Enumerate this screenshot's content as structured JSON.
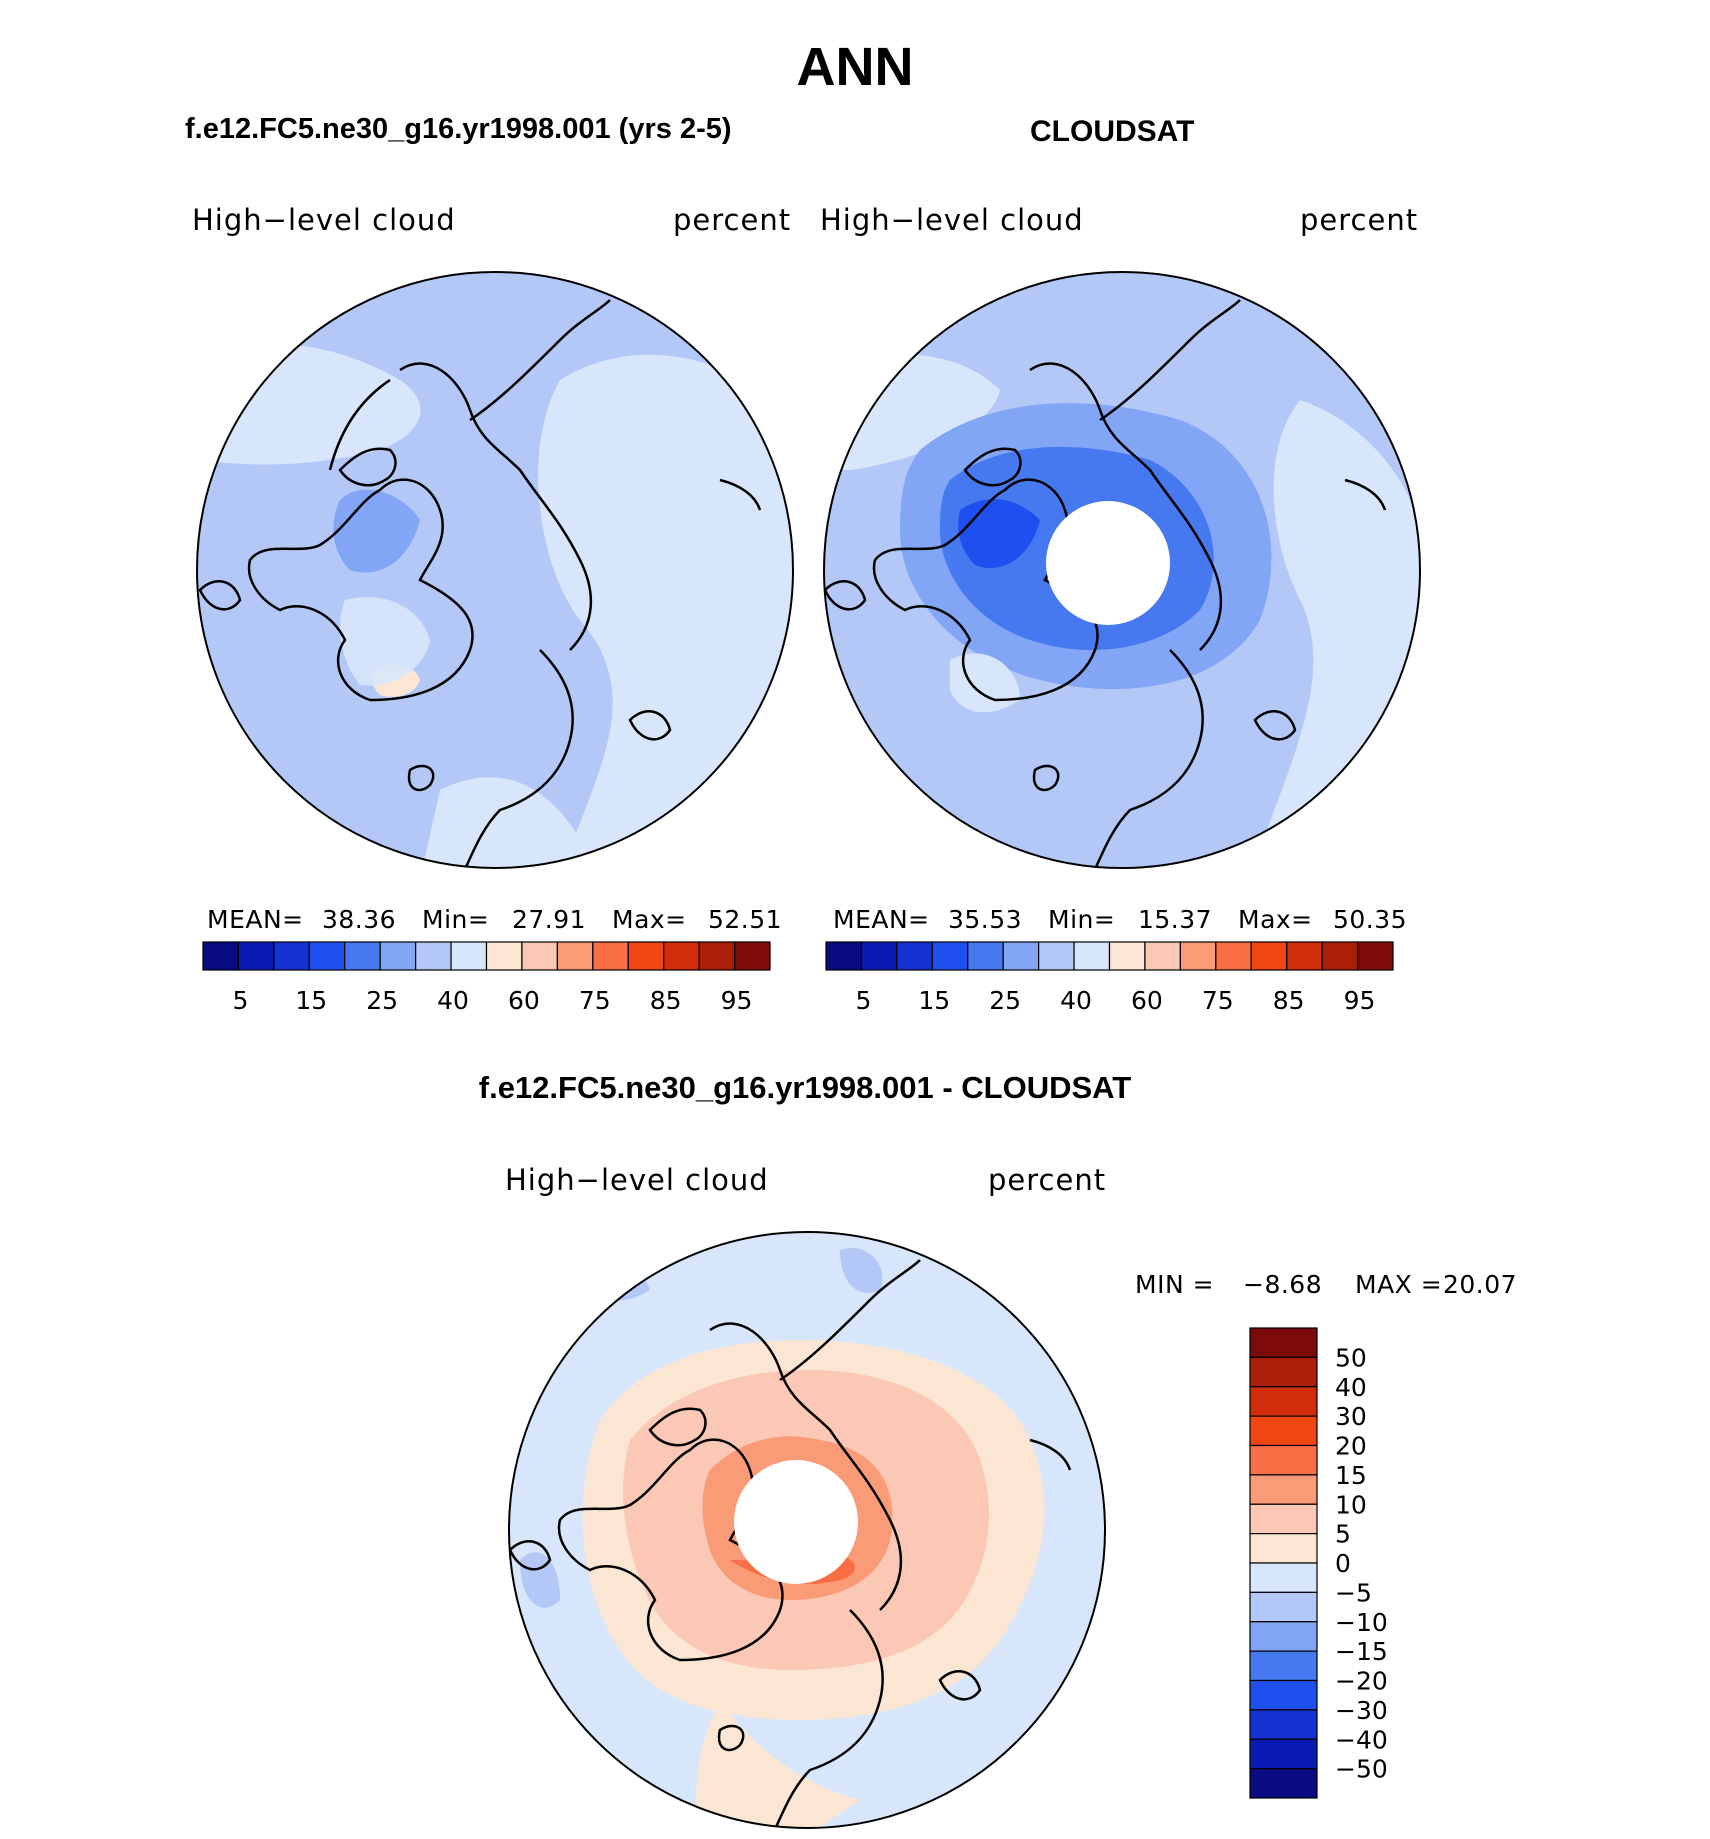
{
  "figure": {
    "season": "ANN",
    "bg": "#ffffff"
  },
  "panels": [
    {
      "id": "model",
      "header": "f.e12.FC5.ne30_g16.yr1998.001 (yrs 2-5)",
      "variable": "High−level cloud",
      "units": "percent",
      "stats": {
        "mean_label": "MEAN=",
        "mean": "38.36",
        "min_label": "Min=",
        "min": "27.91",
        "max_label": "Max=",
        "max": "52.51"
      },
      "has_polar_gap": false
    },
    {
      "id": "obs",
      "header": "CLOUDSAT",
      "variable": "High−level cloud",
      "units": "percent",
      "stats": {
        "mean_label": "MEAN=",
        "mean": "35.53",
        "min_label": "Min=",
        "min": "15.37",
        "max_label": "Max=",
        "max": "50.35"
      },
      "has_polar_gap": true
    },
    {
      "id": "diff",
      "header": "f.e12.FC5.ne30_g16.yr1998.001 - CLOUDSAT",
      "variable": "High−level cloud",
      "units": "percent",
      "stats": {
        "min_label": "MIN =",
        "min": "−8.68",
        "max_label": "MAX =",
        "max": "20.07"
      },
      "has_polar_gap": true
    }
  ],
  "colorbar_abs": {
    "colors": [
      "#0a0a82",
      "#0a1ab4",
      "#1432d2",
      "#1e50f0",
      "#4678f0",
      "#82a5f5",
      "#b4c8f8",
      "#d7e6fa",
      "#fae6d2",
      "#fac8b4",
      "#fa9b78",
      "#fa6e46",
      "#f04614",
      "#d22d0a",
      "#aa1e0a",
      "#7d0a0a"
    ],
    "tick_labels": [
      "5",
      "15",
      "25",
      "40",
      "60",
      "75",
      "85",
      "95"
    ]
  },
  "colorbar_diff": {
    "colors": [
      "#0a0a82",
      "#0a1ab4",
      "#1432d2",
      "#1e50f0",
      "#4678f0",
      "#82a5f5",
      "#b4c8f8",
      "#d7e6fa",
      "#fae6d2",
      "#fac8b4",
      "#fa9b78",
      "#fa6e46",
      "#f04614",
      "#d22d0a",
      "#aa1e0a",
      "#7d0a0a"
    ],
    "tick_labels": [
      "50",
      "40",
      "30",
      "20",
      "15",
      "10",
      "5",
      "0",
      "−5",
      "−10",
      "−15",
      "−20",
      "−30",
      "−40",
      "−50"
    ]
  }
}
